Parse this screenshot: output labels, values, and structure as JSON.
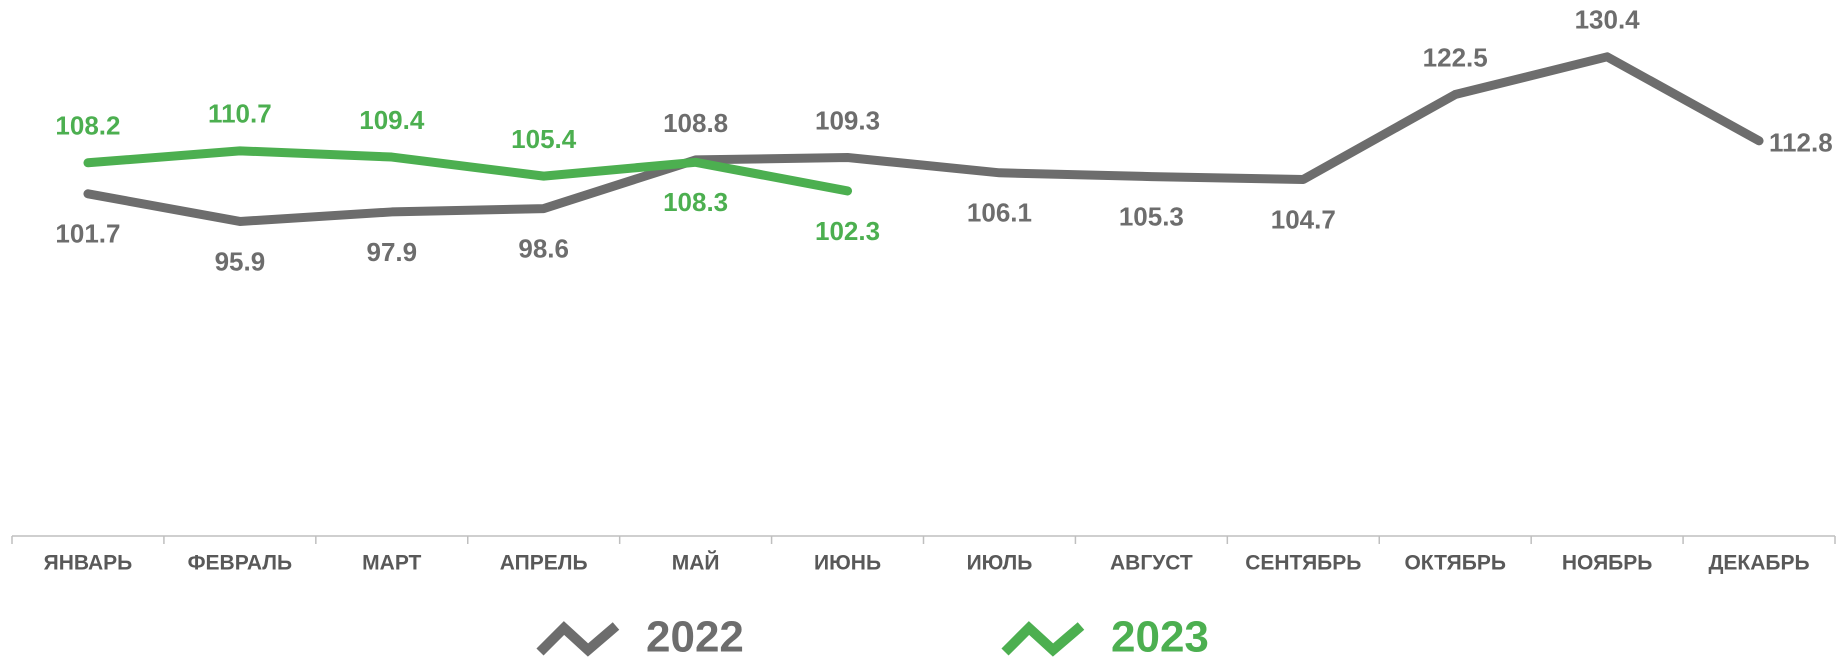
{
  "chart_data": {
    "type": "line",
    "categories": [
      "ЯНВАРЬ",
      "ФЕВРАЛЬ",
      "МАРТ",
      "АПРЕЛЬ",
      "МАЙ",
      "ИЮНЬ",
      "ИЮЛЬ",
      "АВГУСТ",
      "СЕНТЯБРЬ",
      "ОКТЯБРЬ",
      "НОЯБРЬ",
      "ДЕКАБРЬ"
    ],
    "series": [
      {
        "name": "2022",
        "color": "#6d6d6d",
        "values": [
          101.7,
          95.9,
          97.9,
          98.6,
          108.8,
          109.3,
          106.1,
          105.3,
          104.7,
          122.5,
          130.4,
          112.8
        ]
      },
      {
        "name": "2023",
        "color": "#4caf50",
        "values": [
          108.2,
          110.7,
          109.4,
          105.4,
          108.3,
          102.3,
          null,
          null,
          null,
          null,
          null,
          null
        ]
      }
    ],
    "ylim": [
      30,
      140
    ],
    "legend": "bottom"
  }
}
